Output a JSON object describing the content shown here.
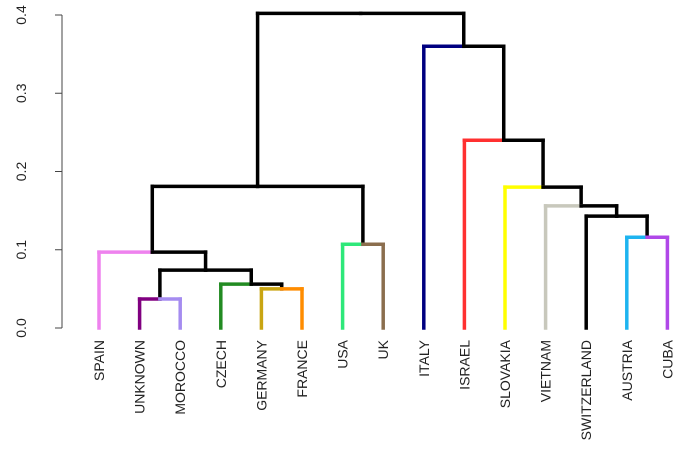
{
  "chart_data": {
    "type": "dendrogram",
    "ylim": [
      0,
      0.4
    ],
    "yticks": [
      {
        "value": 0,
        "label": "0.0"
      },
      0.1,
      0.2,
      0.3,
      0.4
    ],
    "tree": {
      "height": 0.402,
      "children": [
        {
          "height": 0.181,
          "children": [
            {
              "height": 0.097,
              "children": [
                {
                  "label": "SPAIN",
                  "color": "#ee82ee"
                },
                {
                  "height": 0.074,
                  "children": [
                    {
                      "height": 0.037,
                      "children": [
                        {
                          "label": "UNKNOWN",
                          "color": "#800080"
                        },
                        {
                          "label": "MOROCCO",
                          "color": "#a58cf0"
                        }
                      ]
                    },
                    {
                      "height": 0.056,
                      "children": [
                        {
                          "label": "CZECH",
                          "color": "#228b22"
                        },
                        {
                          "height": 0.05,
                          "children": [
                            {
                              "label": "GERMANY",
                              "color": "#c9a512"
                            },
                            {
                              "label": "FRANCE",
                              "color": "#ff8c00"
                            }
                          ]
                        }
                      ]
                    }
                  ]
                }
              ]
            },
            {
              "height": 0.107,
              "children": [
                {
                  "label": "USA",
                  "color": "#2ee87a"
                },
                {
                  "label": "UK",
                  "color": "#8b6e4e"
                }
              ]
            }
          ]
        },
        {
          "height": 0.36,
          "children": [
            {
              "label": "ITALY",
              "color": "#000080"
            },
            {
              "height": 0.24,
              "children": [
                {
                  "label": "ISRAEL",
                  "color": "#ff3030"
                },
                {
                  "height": 0.18,
                  "children": [
                    {
                      "label": "SLOVAKIA",
                      "color": "#ffff00"
                    },
                    {
                      "height": 0.156,
                      "children": [
                        {
                          "label": "VIETNAM",
                          "color": "#c8c8bc"
                        },
                        {
                          "height": 0.143,
                          "children": [
                            {
                              "label": "SWITZERLAND",
                              "color": "#000000"
                            },
                            {
                              "height": 0.116,
                              "children": [
                                {
                                  "label": "AUSTRIA",
                                  "color": "#1eb4f0"
                                },
                                {
                                  "label": "CUBA",
                                  "color": "#b048e8"
                                }
                              ]
                            }
                          ]
                        }
                      ]
                    }
                  ]
                }
              ]
            }
          ]
        }
      ]
    }
  }
}
